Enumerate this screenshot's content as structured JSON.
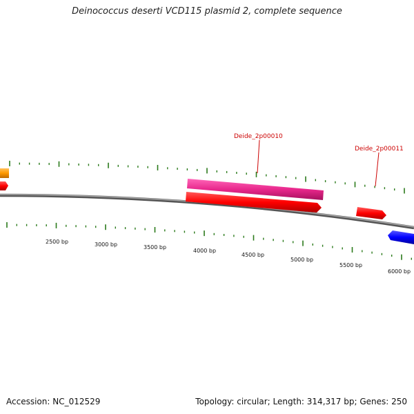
{
  "title": "Deinococcus deserti VCD115 plasmid 2, complete sequence",
  "footer": {
    "accession": "Accession: NC_012529",
    "summary": "Topology: circular; Length: 314,317 bp; Genes: 250"
  },
  "scale_labels": [
    "2500 bp",
    "3000 bp",
    "3500 bp",
    "4000 bp",
    "4500 bp",
    "5000 bp",
    "5500 bp",
    "6000 bp"
  ],
  "gene_labels": [
    "Deide_2p00010",
    "Deide_2p00011"
  ],
  "colors": {
    "backbone": "#777777",
    "tick": "#2a7a1a",
    "gene_red": "#ff0000",
    "gene_pink": "#e8288c",
    "gene_orange": "#ff9900",
    "gene_blue": "#0000ff",
    "label": "#cc0000"
  }
}
